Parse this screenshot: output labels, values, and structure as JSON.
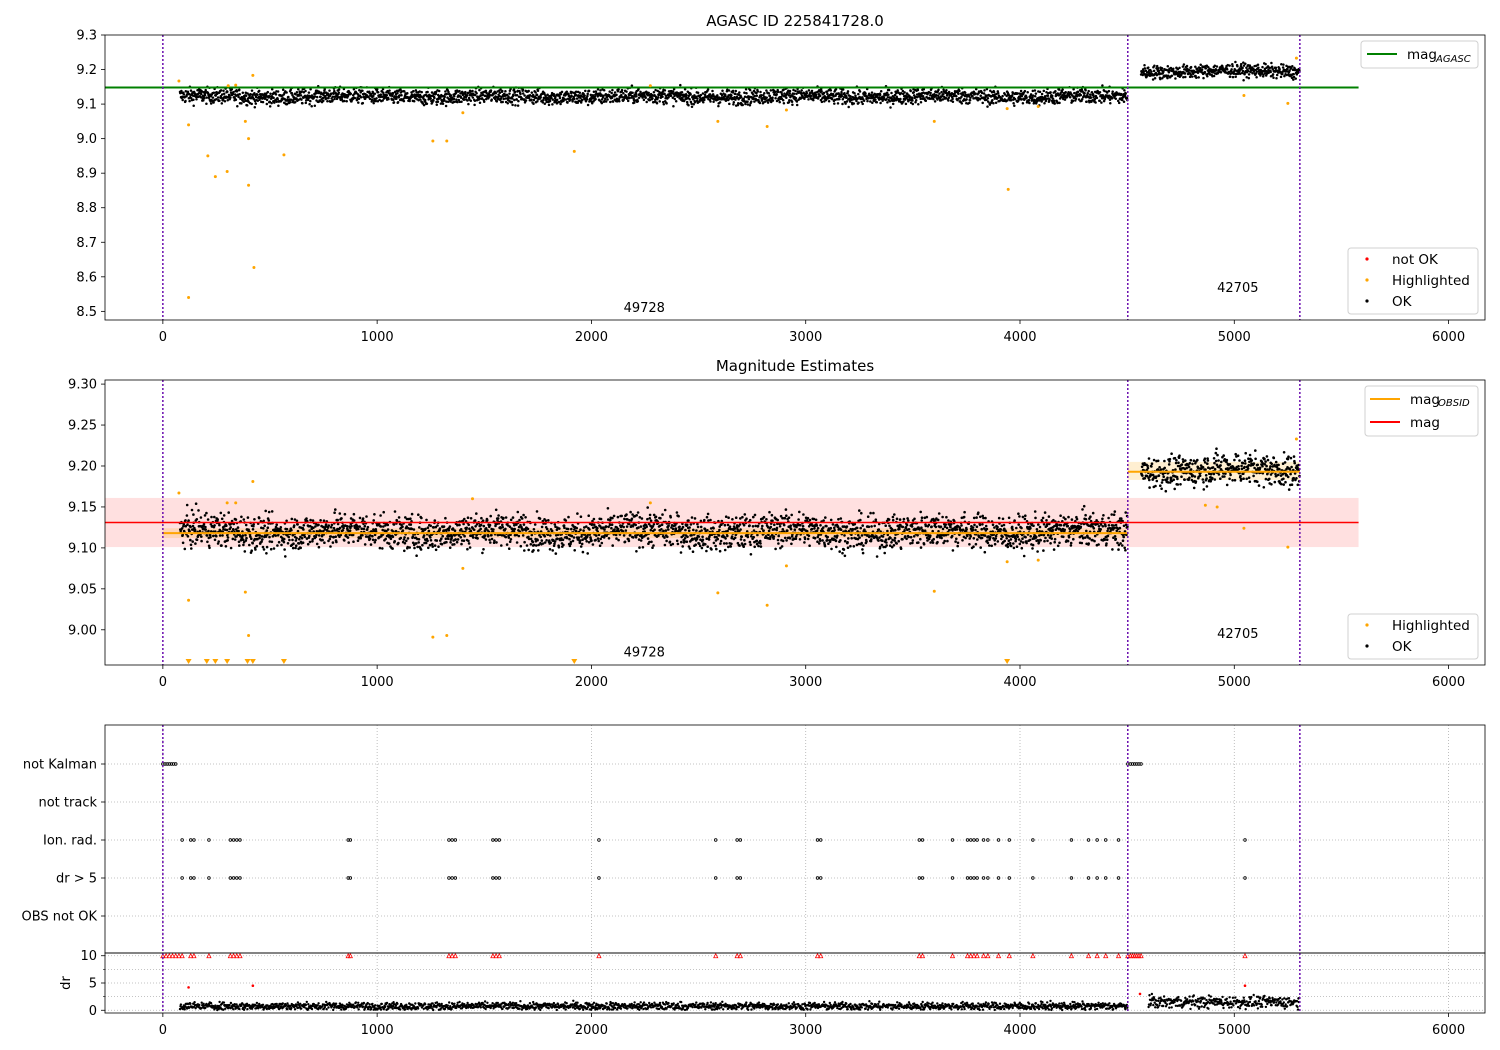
{
  "chart_data": [
    {
      "type": "scatter",
      "title": "AGASC ID 225841728.0",
      "xlim": [
        -270,
        6170
      ],
      "ylim": [
        8.475,
        9.3
      ],
      "xticks": [
        0,
        1000,
        2000,
        3000,
        4000,
        5000,
        6000
      ],
      "yticks": [
        8.5,
        8.6,
        8.7,
        8.8,
        8.9,
        9.0,
        9.1,
        9.2,
        9.3
      ],
      "ytick_labels": [
        "8.5",
        "8.6",
        "8.7",
        "8.8",
        "8.9",
        "9.0",
        "9.1",
        "9.2",
        "9.3"
      ],
      "obs_boundaries": [
        0,
        4503,
        5306
      ],
      "obsid_labels": [
        {
          "text": "49728",
          "x": 2150,
          "y": 8.51
        },
        {
          "text": "42705",
          "x": 4920,
          "y": 8.567
        }
      ],
      "reference_lines": [
        {
          "name": "mag_AGASC",
          "y": 9.148,
          "x": [
            -270,
            5580
          ],
          "color": "#008000"
        }
      ],
      "ok_segments": [
        {
          "x": [
            80,
            4503
          ],
          "y_mean": 9.122,
          "noise": 0.014
        },
        {
          "x": [
            4565,
            5306
          ],
          "y_mean": 9.195,
          "noise": 0.012
        }
      ],
      "highlighted_points": [
        [
          75,
          9.167
        ],
        [
          120,
          9.04
        ],
        [
          120,
          8.54
        ],
        [
          210,
          8.95
        ],
        [
          245,
          8.89
        ],
        [
          300,
          8.905
        ],
        [
          305,
          9.153
        ],
        [
          340,
          9.155
        ],
        [
          385,
          9.05
        ],
        [
          400,
          9.0
        ],
        [
          400,
          8.865
        ],
        [
          420,
          9.183
        ],
        [
          425,
          8.627
        ],
        [
          565,
          8.953
        ],
        [
          1260,
          8.993
        ],
        [
          1325,
          8.993
        ],
        [
          1400,
          9.075
        ],
        [
          1920,
          8.963
        ],
        [
          2275,
          9.153
        ],
        [
          2590,
          9.05
        ],
        [
          2820,
          9.035
        ],
        [
          2910,
          9.083
        ],
        [
          3600,
          9.05
        ],
        [
          3940,
          9.087
        ],
        [
          3945,
          8.853
        ],
        [
          4085,
          9.093
        ],
        [
          5045,
          9.125
        ],
        [
          5250,
          9.102
        ],
        [
          5290,
          9.233
        ]
      ],
      "legend": {
        "position": "upper right",
        "entries": [
          "mag",
          "AGASC"
        ]
      },
      "legend2": {
        "position": "lower right",
        "entries": [
          "not OK",
          "Highlighted",
          "OK"
        ]
      },
      "colors": {
        "ok": "#000000",
        "highlighted": "#ffa500",
        "not_ok": "#ff0000",
        "ref": "#008000"
      }
    },
    {
      "type": "scatter",
      "title": "Magnitude Estimates",
      "xlim": [
        -270,
        6170
      ],
      "ylim": [
        8.957,
        9.305
      ],
      "xticks": [
        0,
        1000,
        2000,
        3000,
        4000,
        5000,
        6000
      ],
      "yticks": [
        9.0,
        9.05,
        9.1,
        9.15,
        9.2,
        9.25,
        9.3
      ],
      "ytick_labels": [
        "9.00",
        "9.05",
        "9.10",
        "9.15",
        "9.20",
        "9.25",
        "9.30"
      ],
      "obs_boundaries": [
        0,
        4503,
        5306
      ],
      "obsid_labels": [
        {
          "text": "49728",
          "x": 2150,
          "y": 8.972
        },
        {
          "text": "42705",
          "x": 4920,
          "y": 8.995
        }
      ],
      "bands": [
        {
          "name": "mag",
          "y": 9.131,
          "lo": 9.101,
          "hi": 9.161,
          "x": [
            -270,
            5580
          ],
          "color": "#ff0000"
        },
        {
          "name": "mag_OBSID",
          "y": 9.118,
          "lo": 9.112,
          "hi": 9.124,
          "x": [
            0,
            4503
          ],
          "color": "#ffa500"
        },
        {
          "name": "mag_OBSID",
          "y": 9.193,
          "lo": 9.183,
          "hi": 9.205,
          "x": [
            4503,
            5306
          ],
          "color": "#ffa500"
        }
      ],
      "ok_segments": [
        {
          "x": [
            80,
            4503
          ],
          "y_mean": 9.12,
          "noise": 0.013
        },
        {
          "x": [
            4565,
            5306
          ],
          "y_mean": 9.195,
          "noise": 0.012
        }
      ],
      "highlighted_points": [
        [
          75,
          9.167
        ],
        [
          120,
          9.036
        ],
        [
          300,
          9.155
        ],
        [
          340,
          9.155
        ],
        [
          385,
          9.046
        ],
        [
          400,
          8.993
        ],
        [
          420,
          9.181
        ],
        [
          1260,
          8.991
        ],
        [
          1325,
          8.993
        ],
        [
          1400,
          9.075
        ],
        [
          1445,
          9.16
        ],
        [
          2275,
          9.155
        ],
        [
          2590,
          9.045
        ],
        [
          2820,
          9.03
        ],
        [
          2910,
          9.078
        ],
        [
          3600,
          9.047
        ],
        [
          3940,
          9.083
        ],
        [
          4085,
          9.085
        ],
        [
          4865,
          9.152
        ],
        [
          4920,
          9.15
        ],
        [
          5045,
          9.124
        ],
        [
          5250,
          9.101
        ],
        [
          5290,
          9.233
        ]
      ],
      "below_range_markers": [
        120,
        205,
        245,
        300,
        395,
        420,
        565,
        1920,
        3940
      ],
      "legend": {
        "position": "upper right",
        "entries": [
          "mag",
          "OBSID",
          "mag"
        ]
      },
      "legend2": {
        "position": "lower right",
        "entries": [
          "Highlighted",
          "OK"
        ]
      },
      "colors": {
        "ok": "#000000",
        "highlighted": "#ffa500",
        "band_mag": "#ff0000",
        "band_obsid": "#ffa500"
      }
    },
    {
      "type": "scatter",
      "title": "",
      "xlim": [
        -270,
        6170
      ],
      "xticks": [
        0,
        1000,
        2000,
        3000,
        4000,
        5000,
        6000
      ],
      "flag_categories": [
        "not Kalman",
        "not track",
        "Ion. rad.",
        "dr > 5",
        "OBS not OK"
      ],
      "flag_points": {
        "not Kalman": [
          0,
          10,
          20,
          30,
          40,
          50,
          60,
          4503,
          4515,
          4525,
          4535,
          4545,
          4555,
          4565
        ],
        "not track": [],
        "Ion. rad.": [
          90,
          130,
          145,
          215,
          315,
          330,
          345,
          360,
          865,
          875,
          1335,
          1350,
          1365,
          1540,
          1555,
          1570,
          2035,
          2580,
          2680,
          2695,
          3055,
          3070,
          3530,
          3545,
          3685,
          3755,
          3770,
          3785,
          3800,
          3830,
          3850,
          3900,
          3950,
          4060,
          4240,
          4320,
          4360,
          4400,
          4460,
          5050
        ],
        "dr > 5": [
          90,
          130,
          145,
          215,
          315,
          330,
          345,
          360,
          865,
          875,
          1335,
          1350,
          1365,
          1540,
          1555,
          1570,
          2035,
          2580,
          2680,
          2695,
          3055,
          3070,
          3530,
          3545,
          3685,
          3755,
          3770,
          3785,
          3800,
          3830,
          3850,
          3900,
          3950,
          4060,
          4240,
          4320,
          4360,
          4400,
          4460,
          5050
        ],
        "OBS not OK": []
      },
      "obs_boundaries": [
        0,
        4503,
        5306
      ],
      "colors": {
        "flag": "#000000",
        "grid": "#b0b0b0"
      }
    },
    {
      "type": "scatter",
      "title": "",
      "ylabel": "dr",
      "xlim": [
        -270,
        6170
      ],
      "ylim": [
        -0.5,
        10.5
      ],
      "xticks": [
        0,
        1000,
        2000,
        3000,
        4000,
        5000,
        6000
      ],
      "yticks": [
        0,
        5,
        10
      ],
      "ytick_labels": [
        "0",
        "5",
        "10"
      ],
      "obs_boundaries": [
        0,
        4503,
        5306
      ],
      "dr_segments": [
        {
          "x": [
            80,
            4503
          ],
          "y_mean": 0.75,
          "noise": 0.35
        },
        {
          "x": [
            4600,
            5306
          ],
          "y_mean": 1.5,
          "noise": 0.55
        }
      ],
      "clipped_points": [
        0,
        15,
        30,
        45,
        60,
        75,
        90,
        130,
        145,
        215,
        315,
        330,
        345,
        360,
        865,
        875,
        1335,
        1350,
        1365,
        1540,
        1555,
        1570,
        2035,
        2580,
        2680,
        2695,
        3055,
        3070,
        3530,
        3545,
        3685,
        3755,
        3770,
        3785,
        3800,
        3830,
        3850,
        3900,
        3950,
        4060,
        4240,
        4320,
        4360,
        4400,
        4460,
        4503,
        4515,
        4525,
        4535,
        4545,
        4555,
        4565,
        5050
      ],
      "red_points": [
        [
          120,
          4.2
        ],
        [
          420,
          4.5
        ],
        [
          4560,
          3.0
        ],
        [
          5050,
          4.5
        ]
      ],
      "colors": {
        "ok": "#000000",
        "bad": "#ff0000"
      }
    }
  ]
}
